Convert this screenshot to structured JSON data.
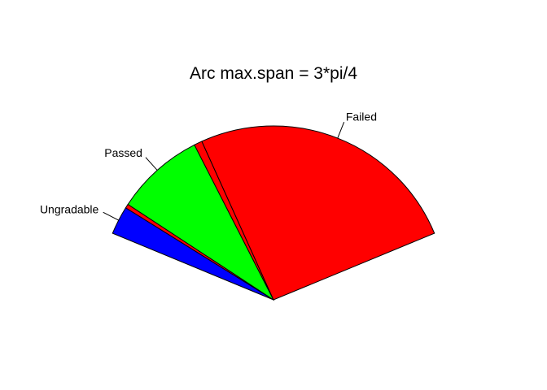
{
  "chart_data": {
    "type": "pie",
    "title": "Arc max.span = 3*pi/4",
    "max_span": "3*pi/4",
    "slices": [
      {
        "label": "Ungradable",
        "value": 7,
        "color": "#0000FF"
      },
      {
        "label": "",
        "value": 1,
        "color": "#FF0000"
      },
      {
        "label": "Passed",
        "value": 22,
        "color": "#00FF00"
      },
      {
        "label": "",
        "value": 2,
        "color": "#FF0000"
      },
      {
        "label": "Failed",
        "value": 68,
        "color": "#FF0000"
      }
    ]
  }
}
